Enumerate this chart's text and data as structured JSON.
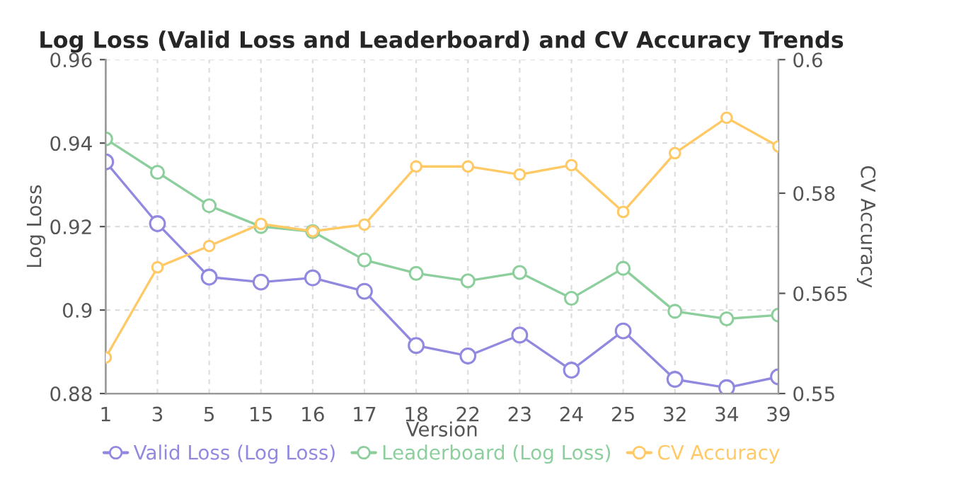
{
  "chart_data": {
    "type": "line",
    "title": "Log Loss (Valid Loss and Leaderboard) and CV Accuracy Trends",
    "xlabel": "Version",
    "ylabel": "Log Loss",
    "y2label": "CV Accuracy",
    "categories": [
      "1",
      "3",
      "5",
      "15",
      "16",
      "17",
      "18",
      "22",
      "23",
      "24",
      "25",
      "32",
      "34",
      "39"
    ],
    "series": [
      {
        "name": "Valid Loss (Log Loss)",
        "color": "#9189e0",
        "values": [
          0.9355,
          0.9207,
          0.9079,
          0.9067,
          0.9077,
          0.9045,
          0.8915,
          0.889,
          0.894,
          0.8856,
          0.895,
          0.8834,
          0.8814,
          0.884
        ]
      },
      {
        "name": "Leaderboard (Log Loss)",
        "color": "#8ccf9c",
        "values": [
          0.941,
          0.933,
          0.925,
          0.92,
          0.9188,
          0.912,
          0.9088,
          0.907,
          0.909,
          0.9028,
          0.91,
          0.8997,
          0.8979,
          0.8988
        ]
      },
      {
        "name": "CV Accuracy",
        "color": "#ffc966",
        "axis": "y2",
        "values": [
          0.5554,
          0.5689,
          0.5721,
          0.5754,
          0.5743,
          0.5753,
          0.584,
          0.584,
          0.5828,
          0.5842,
          0.5772,
          0.586,
          0.5913,
          0.587
        ]
      }
    ],
    "ylim": [
      0.88,
      0.96
    ],
    "yticks": [
      0.88,
      0.9,
      0.92,
      0.94,
      0.96
    ],
    "y2lim": [
      0.55,
      0.6
    ],
    "y2ticks": [
      0.55,
      0.565,
      0.58,
      0.6
    ],
    "grid": true,
    "legend": "bottom",
    "marker": "circle",
    "line_style": "solid"
  }
}
